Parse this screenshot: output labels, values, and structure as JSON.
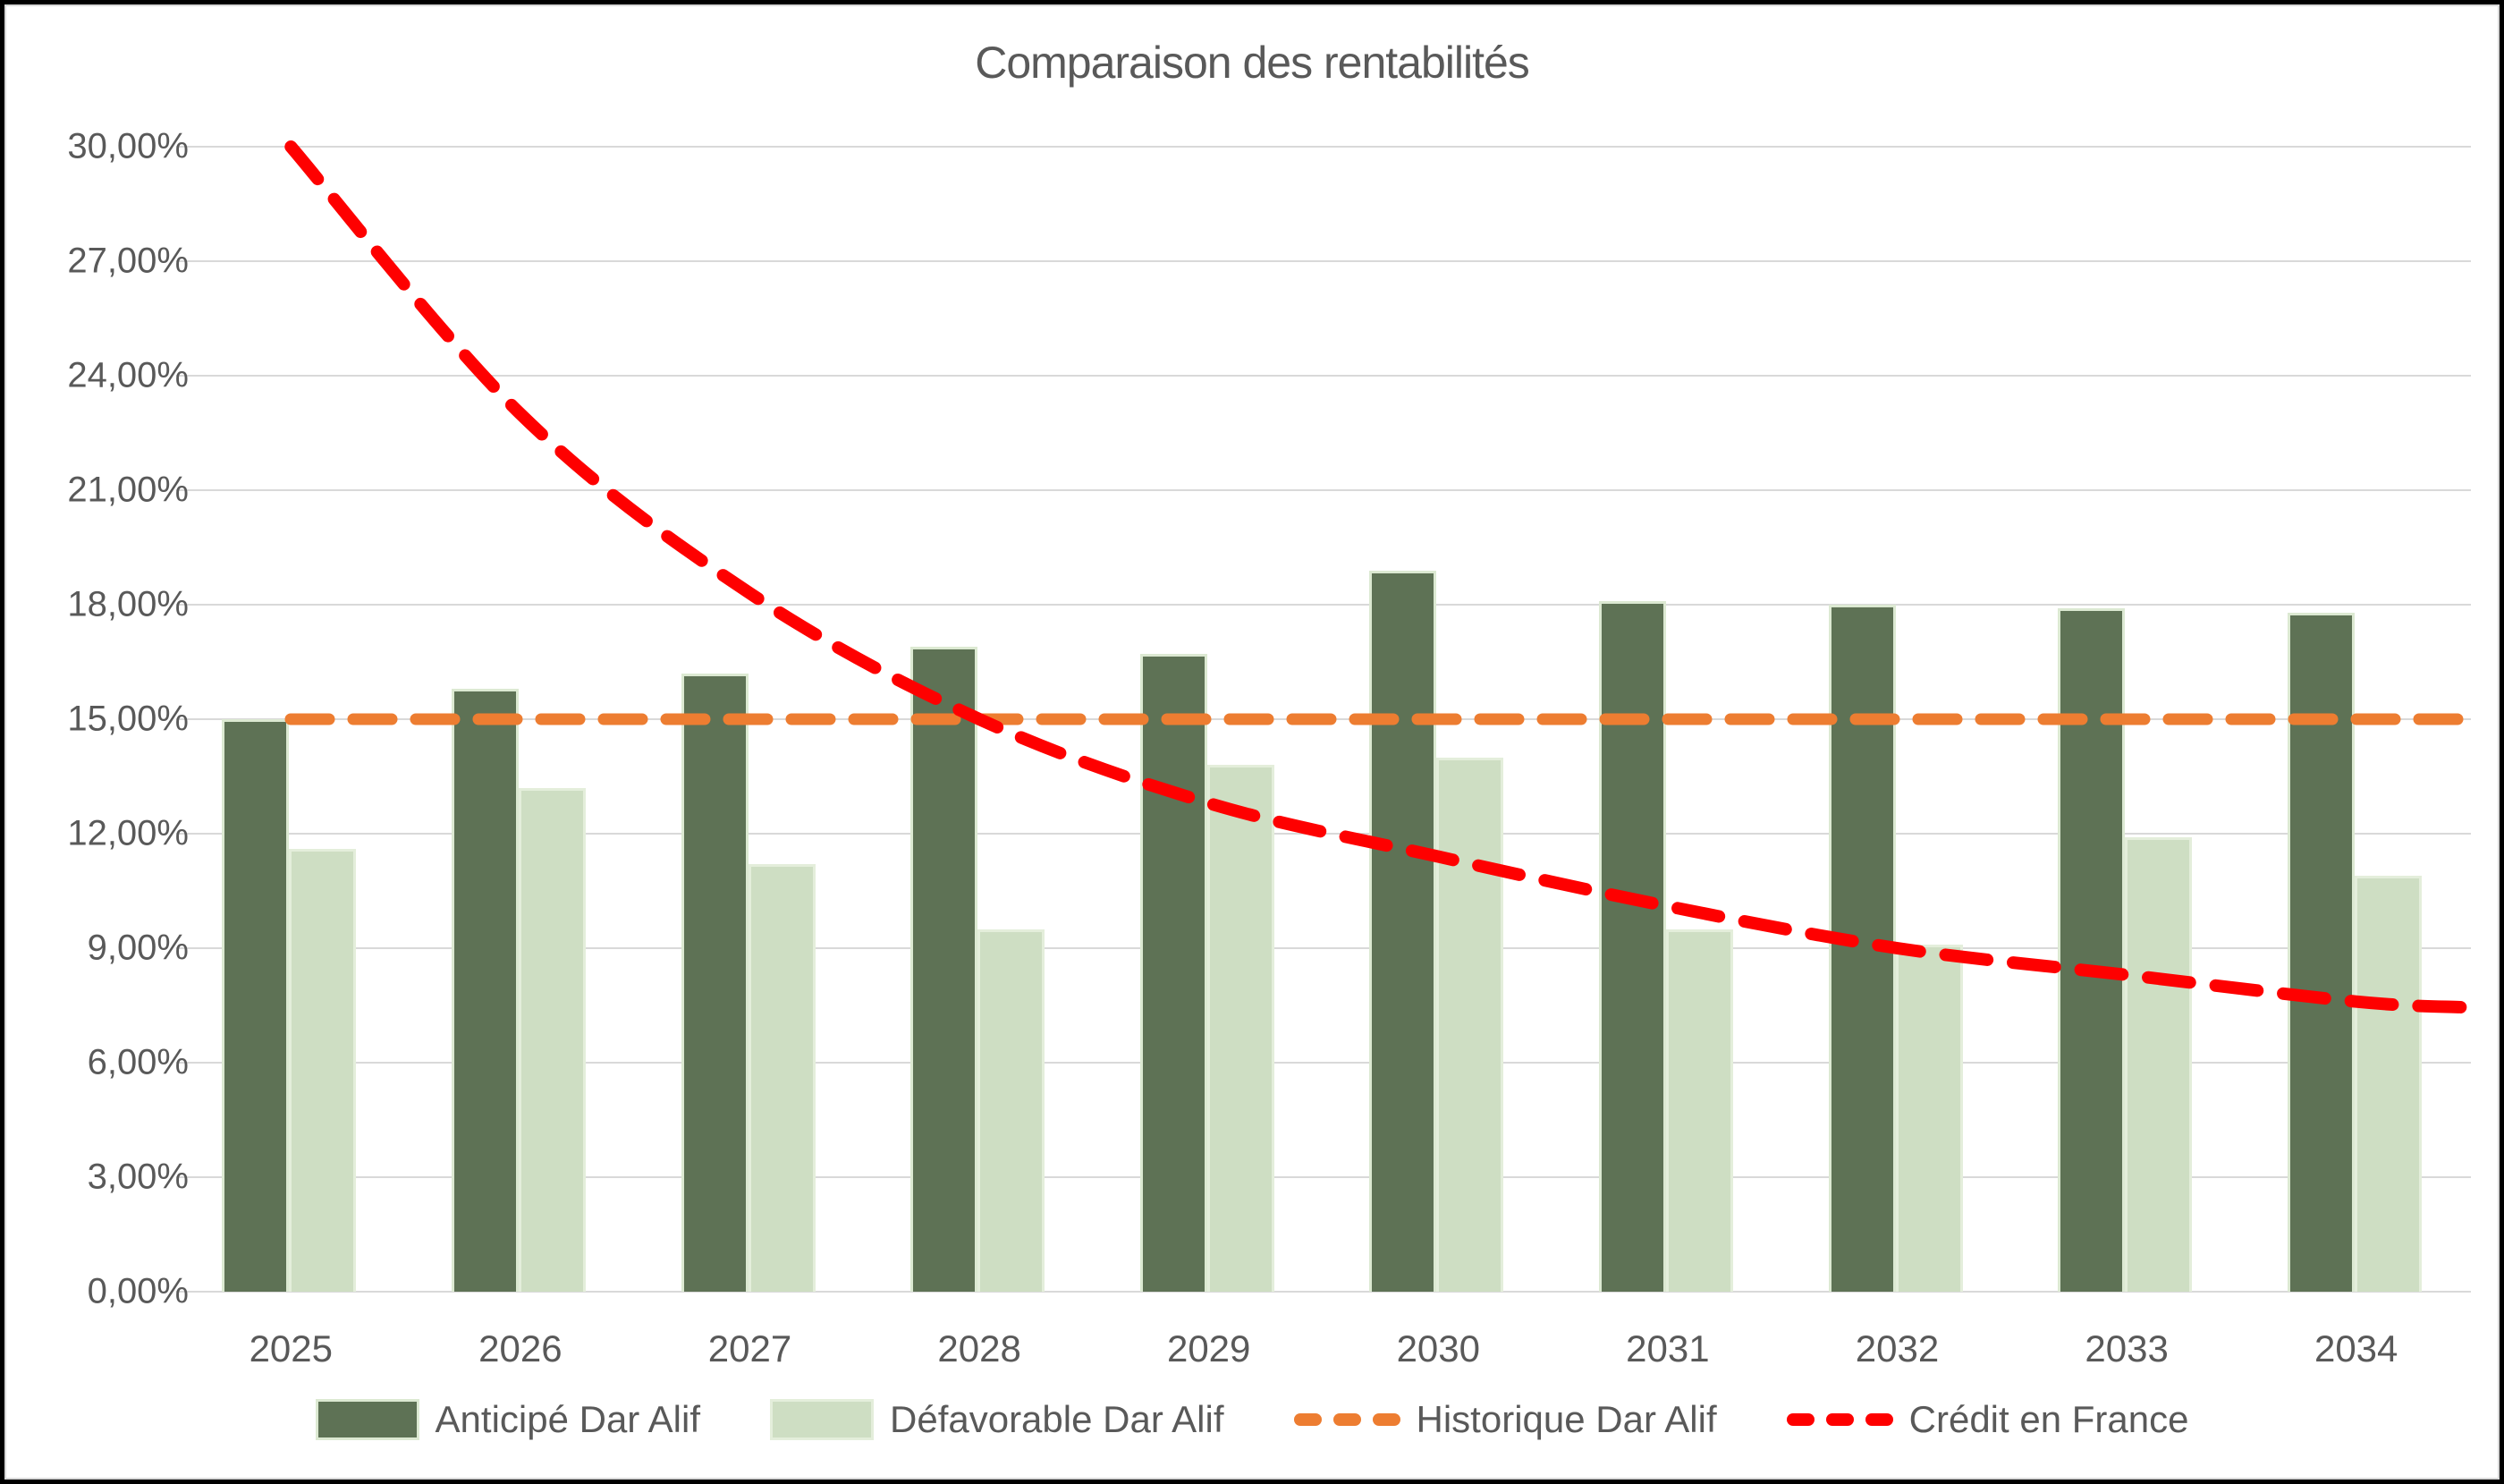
{
  "chart_data": {
    "type": "bar",
    "title": "Comparaison des rentabilités",
    "categories": [
      "2025",
      "2026",
      "2027",
      "2028",
      "2029",
      "2030",
      "2031",
      "2032",
      "2033",
      "2034"
    ],
    "series": [
      {
        "name": "Anticipé Dar Alif",
        "kind": "bar",
        "color": "#5e7255",
        "values": [
          15.0,
          15.8,
          16.2,
          16.9,
          16.7,
          18.9,
          18.1,
          18.0,
          17.9,
          17.8
        ]
      },
      {
        "name": "Défavorable Dar Alif",
        "kind": "bar",
        "color": "#cedec3",
        "values": [
          11.6,
          13.2,
          11.2,
          9.5,
          13.8,
          14.0,
          9.5,
          9.1,
          11.9,
          10.9
        ]
      },
      {
        "name": "Historique Dar Alif",
        "kind": "dashed-line",
        "color": "#ed7d31",
        "values": [
          15.0,
          15.0,
          15.0,
          15.0,
          15.0,
          15.0,
          15.0,
          15.0,
          15.0,
          15.0
        ]
      },
      {
        "name": "Crédit en France",
        "kind": "dashed-line",
        "color": "#fe0000",
        "values": [
          30.0,
          23.0,
          18.3,
          15.0,
          12.8,
          11.4,
          10.1,
          9.0,
          8.3,
          7.6
        ]
      }
    ],
    "y_axis": {
      "min": 0,
      "max": 30,
      "step": 3,
      "tick_labels": [
        "0,00%",
        "3,00%",
        "6,00%",
        "9,00%",
        "12,00%",
        "15,00%",
        "18,00%",
        "21,00%",
        "24,00%",
        "27,00%",
        "30,00%"
      ]
    },
    "x_axis": {
      "tick_labels": [
        "2025",
        "2026",
        "2027",
        "2028",
        "2029",
        "2030",
        "2031",
        "2032",
        "2033",
        "2034"
      ]
    },
    "grid": "horizontal",
    "legend_position": "bottom",
    "colors": {
      "title_text": "#595959",
      "axis_text": "#595959",
      "gridline": "#d9d9d9",
      "anticipe_bar": "#5e7255",
      "defavorable_bar": "#cedec3",
      "historique_line": "#ed7d31",
      "credit_line": "#fe0000"
    }
  }
}
